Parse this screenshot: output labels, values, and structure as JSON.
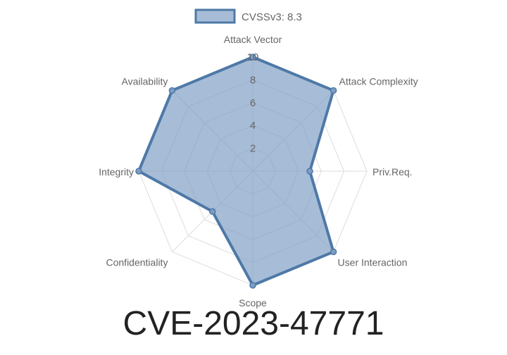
{
  "caption": "CVE-2023-47771",
  "colors": {
    "series_stroke": "#4e79a7",
    "series_fill": "#7e9dc4",
    "grid": "#dddddd",
    "text": "#666666",
    "caption": "#222222"
  },
  "chart_data": {
    "type": "radar",
    "title": "",
    "axes": [
      "Attack Vector",
      "Attack Complexity",
      "Priv.Req.",
      "User Interaction",
      "Scope",
      "Confidentiality",
      "Integrity",
      "Availability"
    ],
    "range": [
      0,
      10
    ],
    "ticks": [
      "2",
      "4",
      "6",
      "8",
      "10"
    ],
    "tick_values": [
      2,
      4,
      6,
      8,
      10
    ],
    "grid": true,
    "legend": "top-center",
    "series": [
      {
        "name": "CVSSv3: 8.3",
        "values": [
          10,
          10,
          5,
          10,
          10,
          5,
          10,
          10
        ]
      }
    ]
  }
}
